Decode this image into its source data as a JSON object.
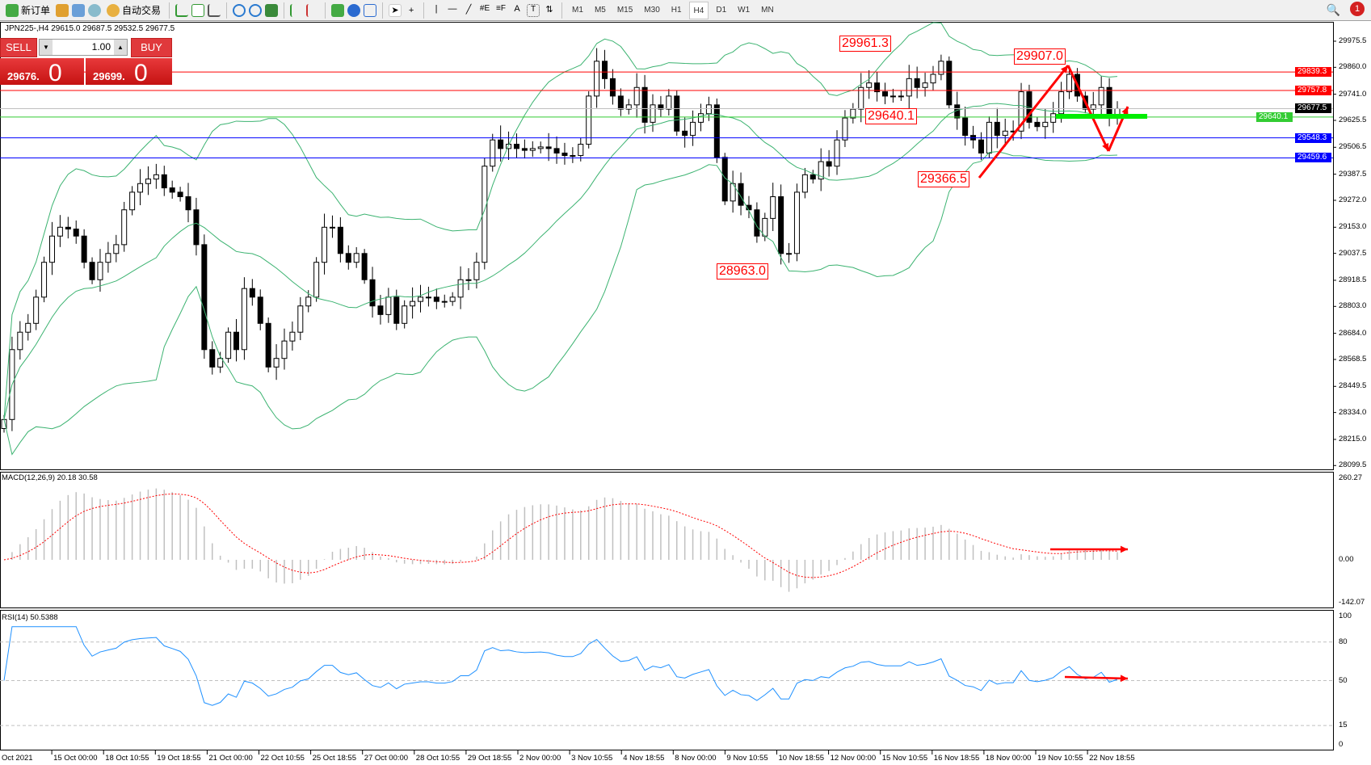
{
  "toolbar": {
    "new_order": "新订单",
    "auto_trading": "自动交易",
    "timeframes": [
      "M1",
      "M5",
      "M15",
      "M30",
      "H1",
      "H4",
      "D1",
      "W1",
      "MN"
    ],
    "active_timeframe": "H4",
    "notifications": "1"
  },
  "chart_info": "JPN225-,H4  29615.0 29687.5 29532.5 29677.5",
  "one_click": {
    "sell": "SELL",
    "buy": "BUY",
    "lot": "1.00",
    "sell_price": "29676.",
    "sell_big": "0",
    "buy_price": "29699.",
    "buy_big": "0"
  },
  "price_axis": [
    "29975.5",
    "29860.0",
    "29741.0",
    "29625.5",
    "29506.5",
    "29387.5",
    "29272.0",
    "29153.0",
    "29037.5",
    "28918.5",
    "28803.0",
    "28684.0",
    "28568.5",
    "28449.5",
    "28334.0",
    "28215.0",
    "28099.5"
  ],
  "levels": [
    {
      "price": "29839.3",
      "color": "#ff0000"
    },
    {
      "price": "29757.8",
      "color": "#ff0000"
    },
    {
      "price": "29677.5",
      "color": "#000000"
    },
    {
      "price": "29640.1",
      "color": "#33cc33"
    },
    {
      "price": "29548.3",
      "color": "#0000ff"
    },
    {
      "price": "29459.6",
      "color": "#0000ff"
    }
  ],
  "annotations": [
    "29961.3",
    "29640.1",
    "29907.0",
    "29366.5",
    "28963.0"
  ],
  "macd": {
    "label": "MACD(12,26,9) 20.18 30.58",
    "axis": [
      "260.27",
      "0.00",
      "-142.07"
    ]
  },
  "rsi": {
    "label": "RSI(14) 50.5388",
    "axis": [
      "100",
      "80",
      "50",
      "15",
      "0"
    ]
  },
  "dates": [
    "Oct 2021",
    "15 Oct 00:00",
    "18 Oct 10:55",
    "19 Oct 18:55",
    "21 Oct 00:00",
    "22 Oct 10:55",
    "25 Oct 18:55",
    "27 Oct 00:00",
    "28 Oct 10:55",
    "29 Oct 18:55",
    "2 Nov 00:00",
    "3 Nov 10:55",
    "4 Nov 18:55",
    "8 Nov 00:00",
    "9 Nov 10:55",
    "10 Nov 18:55",
    "12 Nov 00:00",
    "15 Nov 10:55",
    "16 Nov 18:55",
    "18 Nov 00:00",
    "19 Nov 10:55",
    "22 Nov 18:55"
  ],
  "colors": {
    "bands": "#3cb371",
    "macd_signal": "#ff0000",
    "macd_hist": "#c0c0c0",
    "rsi": "#1e90ff",
    "arrows": "#ff0000",
    "support": "#00ee00"
  },
  "chart_data": {
    "type": "candlestick",
    "symbol": "JPN225-",
    "timeframe": "H4",
    "indicators": [
      "Bollinger Bands",
      "MACD(12,26,9)",
      "RSI(14)"
    ],
    "closes": [
      28303,
      28612,
      28689,
      28728,
      28844,
      28998,
      29114,
      29153,
      29145,
      29114,
      28998,
      28921,
      28998,
      29037,
      29076,
      29230,
      29308,
      29346,
      29366,
      29385,
      29327,
      29308,
      29288,
      29230,
      29076,
      28612,
      28535,
      28573,
      28689,
      28612,
      28882,
      28844,
      28728,
      28535,
      28573,
      28650,
      28689,
      28805,
      28844,
      28998,
      29153,
      29153,
      29037,
      28998,
      29037,
      28921,
      28805,
      28767,
      28844,
      28728,
      28805,
      28825,
      28844,
      28844,
      28825,
      28825,
      28844,
      28921,
      28921,
      28998,
      29423,
      29539,
      29501,
      29520,
      29501,
      29493,
      29501,
      29508,
      29501,
      29481,
      29470,
      29470,
      29520,
      29733,
      29887,
      29810,
      29733,
      29675,
      29694,
      29771,
      29617,
      29694,
      29675,
      29733,
      29578,
      29559,
      29617,
      29655,
      29694,
      29462,
      29269,
      29346,
      29250,
      29230,
      29114,
      29192,
      29288,
      29037,
      29037,
      29308,
      29385,
      29366,
      29443,
      29423,
      29539,
      29636,
      29675,
      29771,
      29791,
      29752,
      29733,
      29733,
      29733,
      29810,
      29771,
      29791,
      29829,
      29887,
      29694,
      29636,
      29559,
      29539,
      29481,
      29617,
      29559,
      29578,
      29578,
      29752,
      29617,
      29598,
      29617,
      29655,
      29752,
      29829,
      29733,
      29675,
      29694,
      29771,
      29636,
      29677.5
    ]
  }
}
